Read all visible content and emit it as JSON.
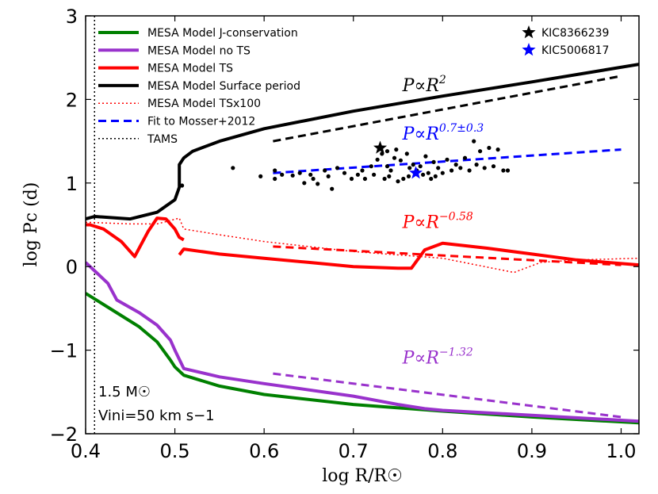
{
  "chart_data": {
    "type": "line",
    "xlabel": "log R/R☉",
    "ylabel": "log Pc (d)",
    "xlim": [
      0.4,
      1.02
    ],
    "ylim": [
      -2,
      3
    ],
    "xticks": [
      "0.4",
      "0.5",
      "0.6",
      "0.7",
      "0.8",
      "0.9",
      "1.0"
    ],
    "yticks": [
      "−2",
      "−1",
      "0",
      "1",
      "2",
      "3"
    ],
    "xtick_values": [
      0.4,
      0.5,
      0.6,
      0.7,
      0.8,
      0.9,
      1.0
    ],
    "ytick_values": [
      -2,
      -1,
      0,
      1,
      2,
      3
    ],
    "legend": [
      {
        "label": "MESA Model J-conservation",
        "color": "#008000",
        "style": "solid",
        "width": 4
      },
      {
        "label": "MESA Model no TS",
        "color": "#9932cc",
        "style": "solid",
        "width": 4
      },
      {
        "label": "MESA Model TS",
        "color": "#ff0000",
        "style": "solid",
        "width": 4
      },
      {
        "label": "MESA Model Surface period",
        "color": "#000000",
        "style": "solid",
        "width": 4
      },
      {
        "label": "MESA Model TSx100",
        "color": "#ff0000",
        "style": "dotted",
        "width": 1.5
      },
      {
        "label": "Fit to Mosser+2012",
        "color": "#0000ff",
        "style": "dashed",
        "width": 3
      },
      {
        "label": "TAMS",
        "color": "#000000",
        "style": "dotted",
        "width": 1.5
      }
    ],
    "star_legend": [
      {
        "label": "KIC8366239",
        "color": "#000000"
      },
      {
        "label": "KIC5006817",
        "color": "#0000ff"
      }
    ],
    "series": [
      {
        "name": "MESA Model J-conservation",
        "color": "#008000",
        "width": 4,
        "dash": "",
        "x": [
          0.4,
          0.43,
          0.46,
          0.48,
          0.495,
          0.5,
          0.51,
          0.55,
          0.6,
          0.7,
          0.8,
          0.9,
          1.02
        ],
        "y": [
          -0.32,
          -0.52,
          -0.72,
          -0.9,
          -1.12,
          -1.2,
          -1.3,
          -1.43,
          -1.53,
          -1.65,
          -1.73,
          -1.8,
          -1.87
        ]
      },
      {
        "name": "MESA Model no TS",
        "color": "#9932cc",
        "width": 4,
        "dash": "",
        "x": [
          0.4,
          0.41,
          0.425,
          0.435,
          0.46,
          0.48,
          0.495,
          0.5,
          0.51,
          0.55,
          0.6,
          0.7,
          0.75,
          0.78,
          0.8,
          0.9,
          1.02
        ],
        "y": [
          0.05,
          -0.05,
          -0.2,
          -0.4,
          -0.55,
          -0.7,
          -0.88,
          -1.0,
          -1.22,
          -1.32,
          -1.4,
          -1.55,
          -1.65,
          -1.7,
          -1.72,
          -1.78,
          -1.85
        ]
      },
      {
        "name": "MESA Model TS",
        "color": "#ff0000",
        "width": 4,
        "dash": "",
        "x": [
          0.4,
          0.405,
          0.42,
          0.44,
          0.455,
          0.47,
          0.48,
          0.49,
          0.5,
          0.505,
          0.51
        ],
        "y": [
          0.5,
          0.5,
          0.45,
          0.3,
          0.12,
          0.42,
          0.58,
          0.57,
          0.45,
          0.35,
          0.32
        ]
      },
      {
        "name": "MESA Model TS (branch)",
        "color": "#ff0000",
        "width": 4,
        "dash": "",
        "x": [
          0.505,
          0.51,
          0.55,
          0.6,
          0.65,
          0.7,
          0.75,
          0.765,
          0.78,
          0.8,
          0.85,
          0.9,
          0.95,
          1.02
        ],
        "y": [
          0.14,
          0.21,
          0.15,
          0.1,
          0.05,
          0.0,
          -0.02,
          -0.02,
          0.2,
          0.28,
          0.22,
          0.15,
          0.08,
          0.02
        ]
      },
      {
        "name": "MESA Model Surface period",
        "color": "#000000",
        "width": 4,
        "dash": "",
        "x": [
          0.4,
          0.41,
          0.45,
          0.48,
          0.5,
          0.505,
          0.505,
          0.51,
          0.52,
          0.55,
          0.6,
          0.7,
          0.8,
          0.9,
          1.02
        ],
        "y": [
          0.57,
          0.6,
          0.57,
          0.65,
          0.8,
          0.95,
          1.22,
          1.3,
          1.38,
          1.5,
          1.65,
          1.86,
          2.04,
          2.21,
          2.42
        ]
      },
      {
        "name": "MESA Model TSx100",
        "color": "#ff0000",
        "width": 1.5,
        "dash": "2,3",
        "x": [
          0.4,
          0.45,
          0.48,
          0.505,
          0.51,
          0.55,
          0.6,
          0.7,
          0.8,
          0.88,
          0.91,
          0.95,
          1.02
        ],
        "y": [
          0.53,
          0.51,
          0.51,
          0.58,
          0.45,
          0.38,
          0.3,
          0.18,
          0.1,
          -0.07,
          0.05,
          0.08,
          0.1
        ]
      },
      {
        "name": "Fit to Mosser+2012",
        "color": "#0000ff",
        "width": 3,
        "dash": "10,6",
        "x": [
          0.61,
          1.0
        ],
        "y": [
          1.12,
          1.4
        ]
      },
      {
        "name": "P ∝ R^2 guide",
        "color": "#000000",
        "width": 3,
        "dash": "10,6",
        "x": [
          0.61,
          1.0
        ],
        "y": [
          1.5,
          2.28
        ]
      },
      {
        "name": "P ∝ R^-0.58 guide",
        "color": "#ff0000",
        "width": 3,
        "dash": "10,6",
        "x": [
          0.61,
          1.0
        ],
        "y": [
          0.24,
          0.02
        ]
      },
      {
        "name": "P ∝ R^-1.32 guide",
        "color": "#9932cc",
        "width": 3,
        "dash": "10,6",
        "x": [
          0.61,
          1.0
        ],
        "y": [
          -1.28,
          -1.8
        ]
      }
    ],
    "tams_x": 0.41,
    "scatter": {
      "color": "#000000",
      "points": [
        [
          0.565,
          1.18
        ],
        [
          0.596,
          1.08
        ],
        [
          0.612,
          1.05
        ],
        [
          0.62,
          1.1
        ],
        [
          0.632,
          1.09
        ],
        [
          0.64,
          1.12
        ],
        [
          0.645,
          1.0
        ],
        [
          0.652,
          1.1
        ],
        [
          0.655,
          1.05
        ],
        [
          0.66,
          0.99
        ],
        [
          0.668,
          1.15
        ],
        [
          0.672,
          1.08
        ],
        [
          0.676,
          0.93
        ],
        [
          0.682,
          1.18
        ],
        [
          0.69,
          1.12
        ],
        [
          0.698,
          1.05
        ],
        [
          0.705,
          1.1
        ],
        [
          0.71,
          1.15
        ],
        [
          0.713,
          1.05
        ],
        [
          0.72,
          1.2
        ],
        [
          0.723,
          1.1
        ],
        [
          0.727,
          1.28
        ],
        [
          0.732,
          1.35
        ],
        [
          0.735,
          1.05
        ],
        [
          0.738,
          1.2
        ],
        [
          0.742,
          1.15
        ],
        [
          0.746,
          1.3
        ],
        [
          0.75,
          1.02
        ],
        [
          0.753,
          1.27
        ],
        [
          0.756,
          1.05
        ],
        [
          0.76,
          1.35
        ],
        [
          0.763,
          1.18
        ],
        [
          0.767,
          1.22
        ],
        [
          0.771,
          1.15
        ],
        [
          0.775,
          1.2
        ],
        [
          0.778,
          1.1
        ],
        [
          0.781,
          1.32
        ],
        [
          0.784,
          1.12
        ],
        [
          0.787,
          1.05
        ],
        [
          0.79,
          1.25
        ],
        [
          0.795,
          1.18
        ],
        [
          0.8,
          1.12
        ],
        [
          0.805,
          1.28
        ],
        [
          0.81,
          1.15
        ],
        [
          0.815,
          1.22
        ],
        [
          0.82,
          1.18
        ],
        [
          0.825,
          1.3
        ],
        [
          0.83,
          1.15
        ],
        [
          0.835,
          1.5
        ],
        [
          0.838,
          1.22
        ],
        [
          0.842,
          1.38
        ],
        [
          0.847,
          1.18
        ],
        [
          0.852,
          1.42
        ],
        [
          0.857,
          1.2
        ],
        [
          0.862,
          1.4
        ],
        [
          0.868,
          1.15
        ],
        [
          0.873,
          1.15
        ],
        [
          0.612,
          1.15
        ],
        [
          0.508,
          0.97
        ],
        [
          0.748,
          1.4
        ],
        [
          0.738,
          1.38
        ],
        [
          0.74,
          1.08
        ],
        [
          0.762,
          1.08
        ],
        [
          0.792,
          1.08
        ]
      ]
    },
    "stars": [
      {
        "name": "KIC8366239",
        "x": 0.73,
        "y": 1.42,
        "color": "#000000"
      },
      {
        "name": "KIC5006817",
        "x": 0.77,
        "y": 1.12,
        "color": "#0000ff"
      }
    ],
    "annotations": [
      {
        "base": "P∝R",
        "exp": "2",
        "color": "#000000",
        "x": 0.755,
        "y": 2.1
      },
      {
        "base": "P∝R",
        "exp": "0.7±0.3",
        "color": "#0000ff",
        "x": 0.755,
        "y": 1.52
      },
      {
        "base": "P∝R",
        "exp": "−0.58",
        "color": "#ff0000",
        "x": 0.755,
        "y": 0.46
      },
      {
        "base": "P∝R",
        "exp": "−1.32",
        "color": "#9932cc",
        "x": 0.755,
        "y": -1.16
      }
    ],
    "notes": [
      "1.5 M☉",
      "Vini=50 km s−1"
    ]
  }
}
